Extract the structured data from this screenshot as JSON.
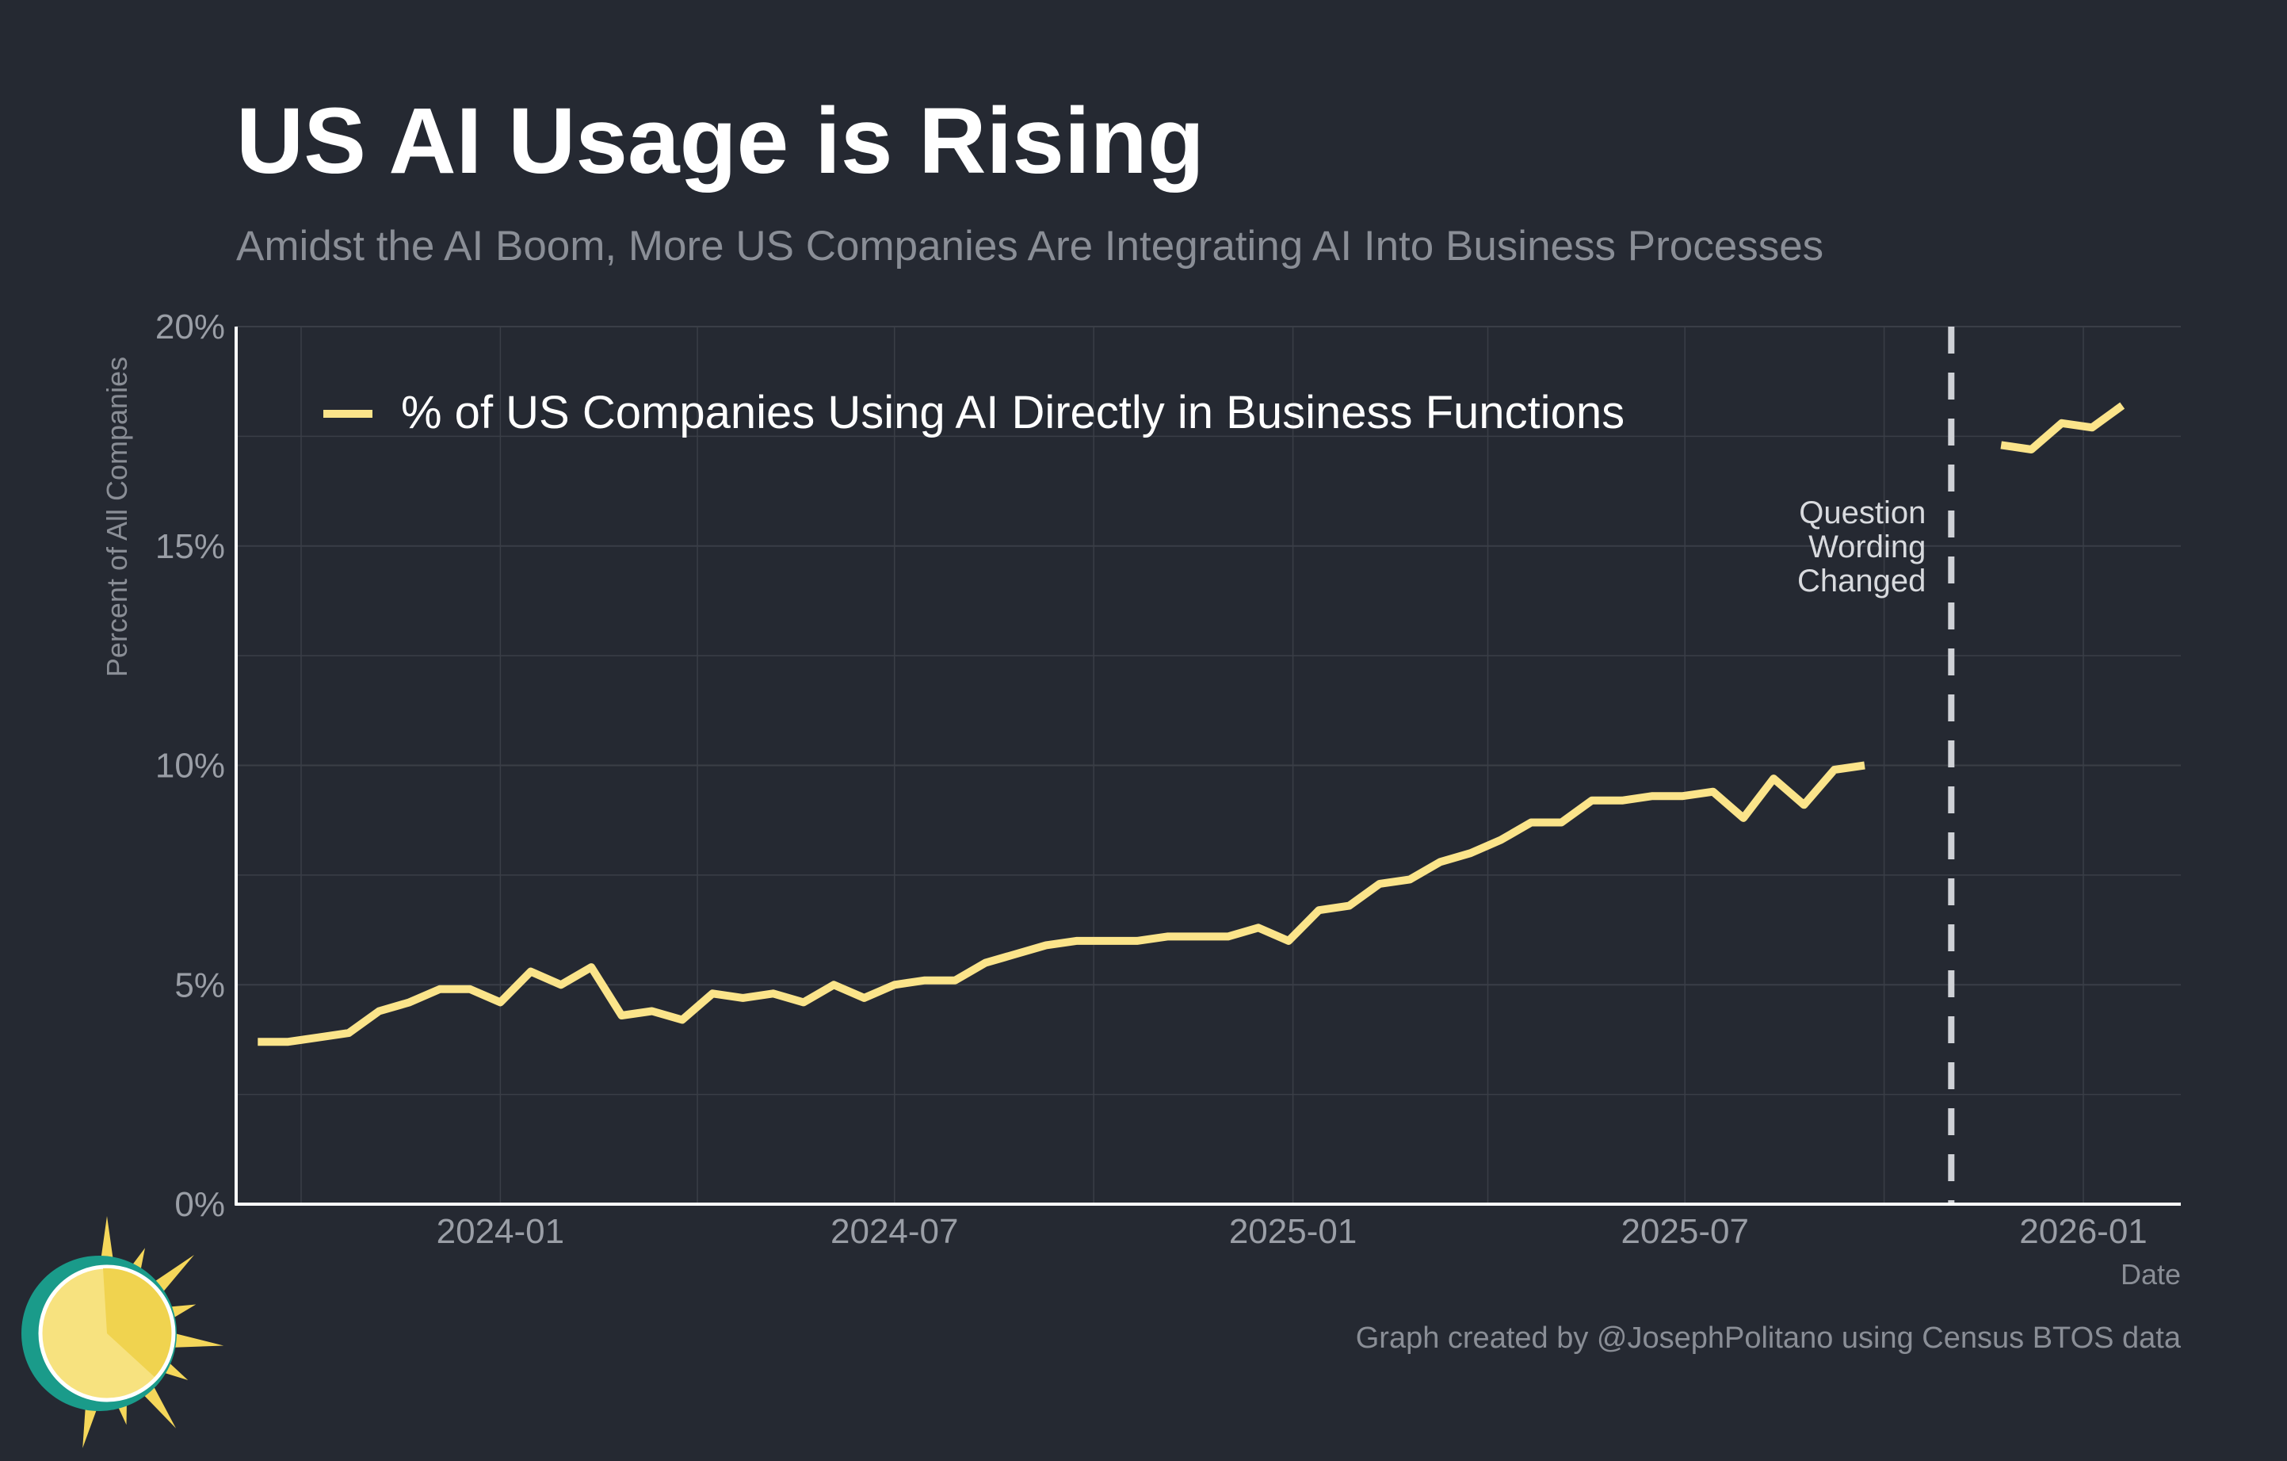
{
  "header": {
    "title": "US AI Usage is Rising",
    "subtitle": "Amidst the AI Boom, More US Companies Are Integrating AI Into Business Processes"
  },
  "credit": "Graph created by @JosephPolitano using Census BTOS data",
  "annotation": {
    "date": "2025-11-01",
    "lines": [
      "Question",
      "Wording",
      "Changed"
    ]
  },
  "colors": {
    "background": "#252932",
    "series": "#fbe48a",
    "grid": "#3a3e47",
    "axis": "#ffffff",
    "annotation_line": "#cfd1d6"
  },
  "logo": {
    "icon": "sun-logo-icon"
  },
  "chart_data": {
    "type": "line",
    "title": "US AI Usage is Rising",
    "subtitle": "Amidst the AI Boom, More US Companies Are Integrating AI Into Business Processes",
    "xlabel": "Date",
    "ylabel": "Percent of All Companies",
    "xlim": [
      "2023-09-01",
      "2026-02-15"
    ],
    "ylim": [
      0,
      20
    ],
    "yticks": [
      0,
      5,
      10,
      15,
      20
    ],
    "ytick_labels": [
      "0%",
      "5%",
      "10%",
      "15%",
      "20%"
    ],
    "xticks": [
      "2024-01-01",
      "2024-07-01",
      "2025-01-01",
      "2025-07-01",
      "2026-01-01"
    ],
    "xtick_labels": [
      "2024-01",
      "2024-07",
      "2025-01",
      "2025-07",
      "2026-01"
    ],
    "grid": true,
    "legend_position": "top-left",
    "series": [
      {
        "name": "% of US Companies Using AI Directly in Business Functions",
        "segments": [
          {
            "x": [
              "2023-09-11",
              "2023-09-25",
              "2023-10-09",
              "2023-10-23",
              "2023-11-06",
              "2023-11-20",
              "2023-12-04",
              "2023-12-18",
              "2024-01-01",
              "2024-01-15",
              "2024-01-29",
              "2024-02-12",
              "2024-02-26",
              "2024-03-11",
              "2024-03-25",
              "2024-04-08",
              "2024-04-22",
              "2024-05-06",
              "2024-05-20",
              "2024-06-03",
              "2024-06-17",
              "2024-07-01",
              "2024-07-15",
              "2024-07-29",
              "2024-08-12",
              "2024-08-26",
              "2024-09-09",
              "2024-09-23",
              "2024-10-07",
              "2024-10-21",
              "2024-11-04",
              "2024-11-18",
              "2024-12-02",
              "2024-12-16",
              "2024-12-30",
              "2025-01-13",
              "2025-01-27",
              "2025-02-10",
              "2025-02-24",
              "2025-03-10",
              "2025-03-24",
              "2025-04-07",
              "2025-04-21",
              "2025-05-05",
              "2025-05-19",
              "2025-06-02",
              "2025-06-16",
              "2025-06-30",
              "2025-07-14",
              "2025-07-28",
              "2025-08-11",
              "2025-08-25",
              "2025-09-08",
              "2025-09-22"
            ],
            "values": [
              3.7,
              3.7,
              3.8,
              3.9,
              4.4,
              4.6,
              4.9,
              4.9,
              4.6,
              5.3,
              5.0,
              5.4,
              4.3,
              4.4,
              4.2,
              4.8,
              4.7,
              4.8,
              4.6,
              5.0,
              4.7,
              5.0,
              5.1,
              5.1,
              5.5,
              5.7,
              5.9,
              6.0,
              6.0,
              6.0,
              6.1,
              6.1,
              6.1,
              6.3,
              6.0,
              6.7,
              6.8,
              7.3,
              7.4,
              7.8,
              8.0,
              8.3,
              8.7,
              8.7,
              9.2,
              9.2,
              9.3,
              9.3,
              9.4,
              8.8,
              9.7,
              9.1,
              9.9,
              10.0
            ]
          },
          {
            "x": [
              "2025-11-24",
              "2025-12-08",
              "2025-12-22",
              "2026-01-05",
              "2026-01-19"
            ],
            "values": [
              17.3,
              17.2,
              17.8,
              17.7,
              18.2
            ]
          }
        ]
      }
    ]
  }
}
